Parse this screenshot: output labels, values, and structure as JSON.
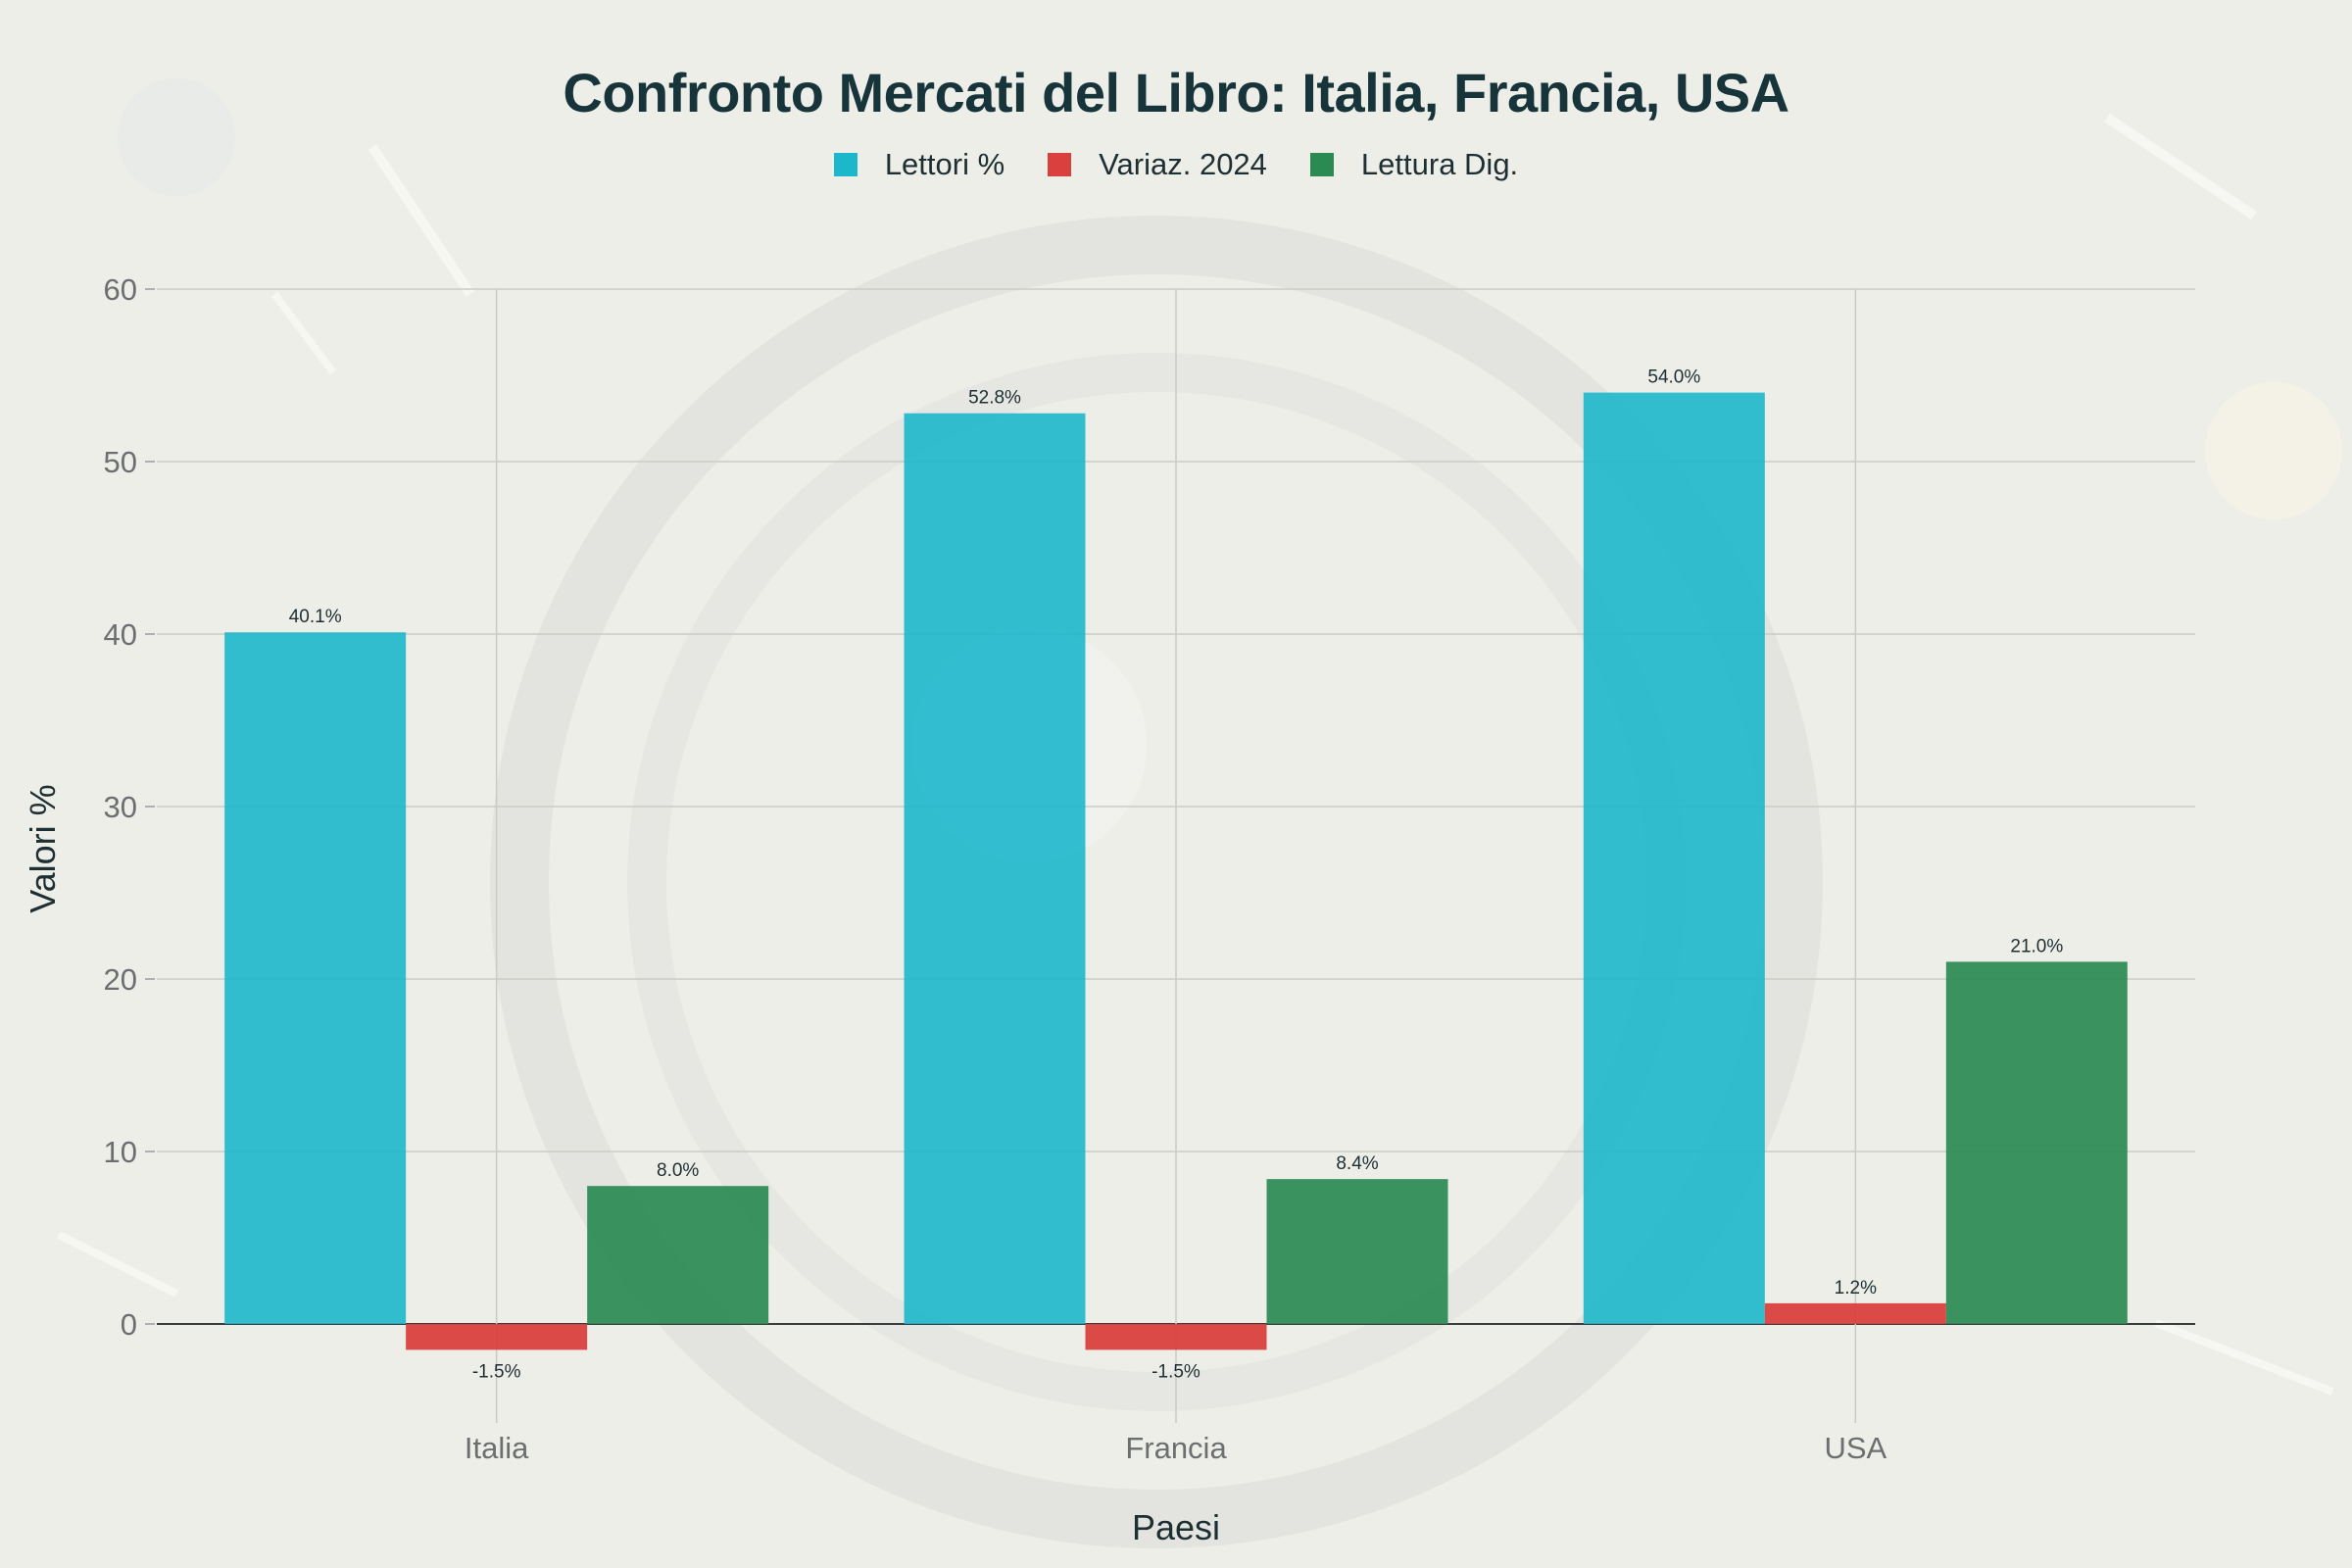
{
  "colors": {
    "lettori": "#1db7cc",
    "variazione": "#d9403e",
    "digitale": "#2a8a52",
    "text": "#17343a",
    "tick": "#6b6f70",
    "grid": "#c9cbc6"
  },
  "chart_data": {
    "type": "bar",
    "title": "Confronto Mercati del Libro: Italia, Francia, USA",
    "xlabel": "Paesi",
    "ylabel": "Valori %",
    "ylim": [
      -5,
      60
    ],
    "yticks": [
      0,
      10,
      20,
      30,
      40,
      50,
      60
    ],
    "grid": true,
    "legend_position": "top-center",
    "categories": [
      "Italia",
      "Francia",
      "USA"
    ],
    "series": [
      {
        "name": "Lettori %",
        "values": [
          40.1,
          52.8,
          54.0
        ],
        "labels": [
          "40.1%",
          "52.8%",
          "54.0%"
        ]
      },
      {
        "name": "Variaz. 2024",
        "values": [
          -1.5,
          -1.5,
          1.2
        ],
        "labels": [
          "-1.5%",
          "-1.5%",
          "1.2%"
        ]
      },
      {
        "name": "Lettura Dig.",
        "values": [
          8.0,
          8.4,
          21.0
        ],
        "labels": [
          "8.0%",
          "8.4%",
          "21.0%"
        ]
      }
    ]
  }
}
